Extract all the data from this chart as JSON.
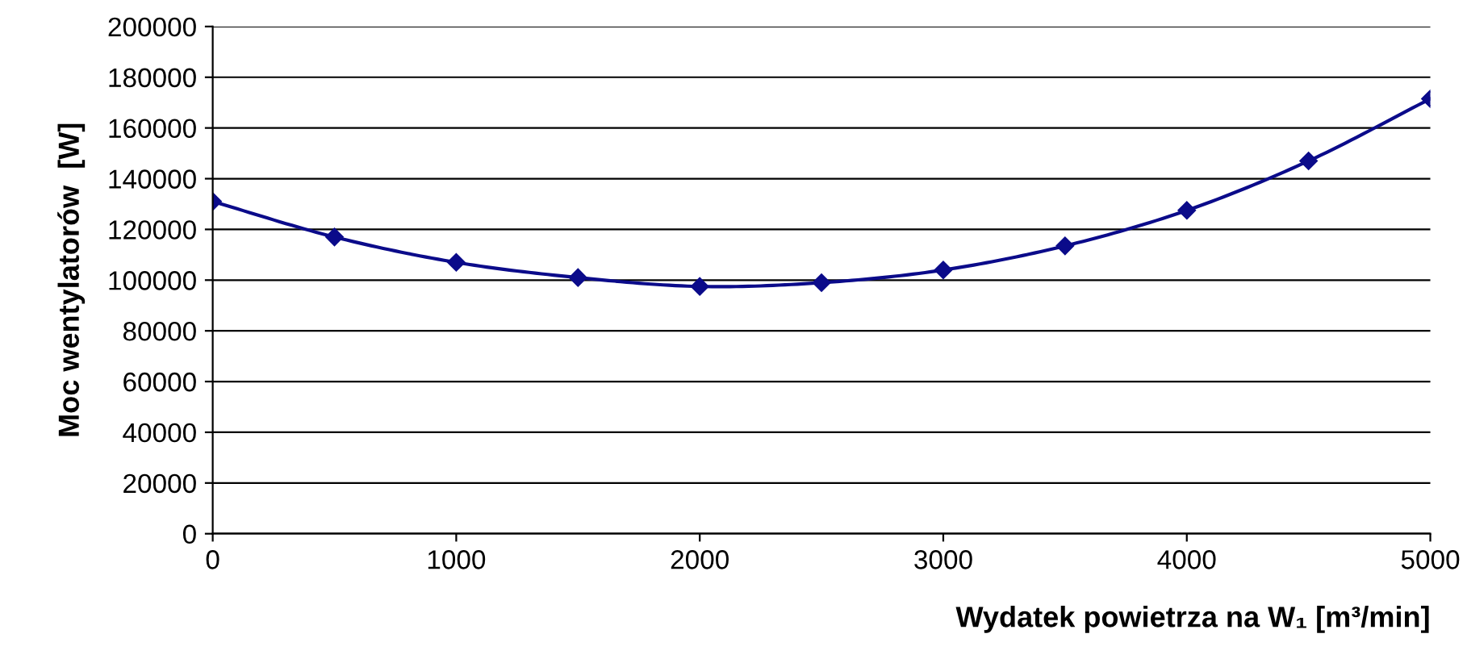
{
  "chart_data": {
    "type": "line",
    "xlabel": "Wydatek powietrza na W₁ [m³/min]",
    "ylabel": "Moc wentylatorów  [W]",
    "x": [
      0,
      500,
      1000,
      1500,
      2000,
      2500,
      3000,
      3500,
      4000,
      4500,
      5000
    ],
    "series": [
      {
        "color": "#0b0b8a",
        "values": [
          131000,
          117000,
          107000,
          101000,
          97500,
          99000,
          104000,
          113500,
          127500,
          147000,
          171500
        ]
      }
    ],
    "xlim": [
      0,
      5000
    ],
    "xticks": [
      0,
      1000,
      2000,
      3000,
      4000,
      5000
    ],
    "ylim": [
      0,
      200000
    ],
    "yticks": [
      0,
      20000,
      40000,
      60000,
      80000,
      100000,
      120000,
      140000,
      160000,
      180000,
      200000
    ],
    "grid": "y",
    "marker": "diamond",
    "line_style": "solid"
  }
}
